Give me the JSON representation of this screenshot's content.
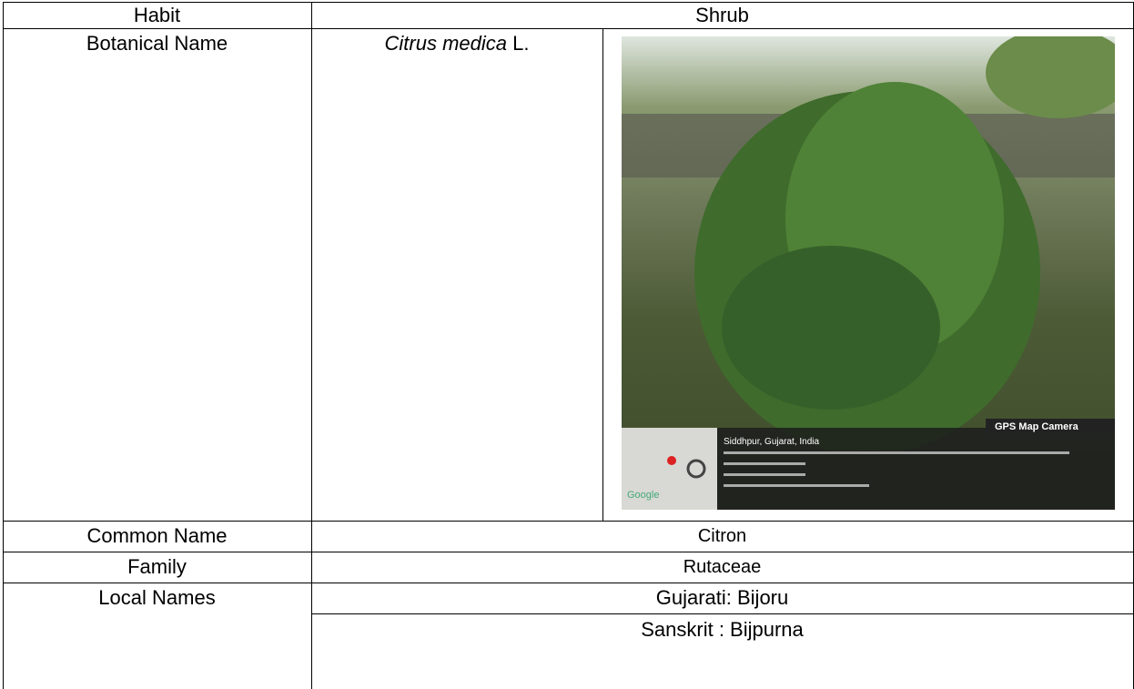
{
  "table": {
    "habit": {
      "label": "Habit",
      "value": "Shrub"
    },
    "botanical_name": {
      "label": "Botanical Name",
      "species": "Citrus medica",
      "author": "L."
    },
    "common_name": {
      "label": "Common Name",
      "value": "Citron"
    },
    "family": {
      "label": "Family",
      "value": "Rutaceae"
    },
    "local_names": {
      "label": "Local Names",
      "values": [
        "Gujarati: Bijoru",
        "Sanskrit : Bijpurna"
      ]
    }
  },
  "photo": {
    "badge": "GPS Map Camera",
    "location": "Siddhpur, Gujarat, India",
    "map_label": "Google"
  }
}
